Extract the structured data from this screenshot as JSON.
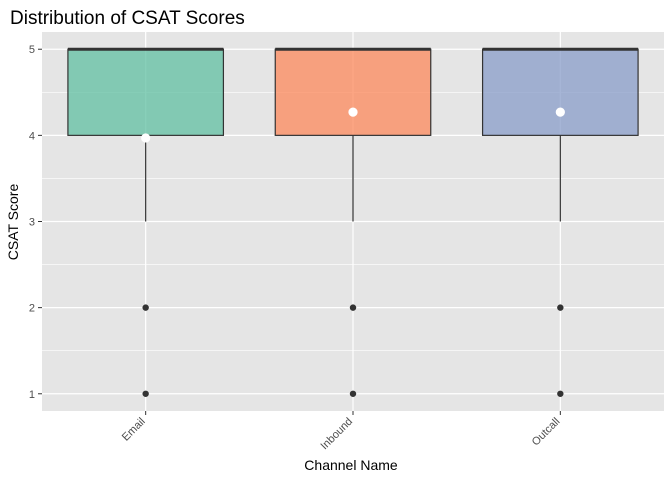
{
  "chart_data": {
    "type": "boxplot",
    "title": "Distribution of CSAT Scores",
    "xlabel": "Channel Name",
    "ylabel": "CSAT Score",
    "ylim": [
      0.8,
      5.2
    ],
    "yticks": [
      1,
      2,
      3,
      4,
      5
    ],
    "categories": [
      "Email",
      "Inbound",
      "Outcall"
    ],
    "series": [
      {
        "category": "Email",
        "color": "#66c2a5",
        "whisker_low": 3,
        "q1": 4,
        "median": 5,
        "q3": 5,
        "whisker_high": 5,
        "outliers": [
          1,
          2
        ],
        "mean": 3.97
      },
      {
        "category": "Inbound",
        "color": "#fc8d62",
        "whisker_low": 3,
        "q1": 4,
        "median": 5,
        "q3": 5,
        "whisker_high": 5,
        "outliers": [
          1,
          2
        ],
        "mean": 4.27
      },
      {
        "category": "Outcall",
        "color": "#8da0cb",
        "whisker_low": 3,
        "q1": 4,
        "median": 5,
        "q3": 5,
        "whisker_high": 5,
        "outliers": [
          1,
          2
        ],
        "mean": 4.27
      }
    ],
    "panel_background": "#e5e5e5",
    "grid_color": "#ffffff",
    "grid": true,
    "legend": "none"
  }
}
